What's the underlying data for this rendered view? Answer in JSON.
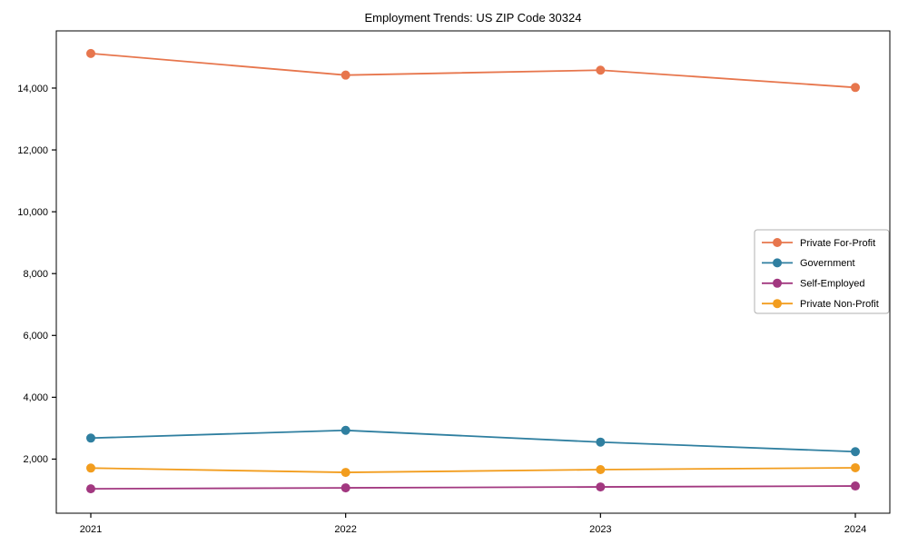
{
  "figure": {
    "background": "#ffffff",
    "frame_color": "#000000",
    "legend_border_color": "#b0b0b0"
  },
  "chart_data": {
    "type": "line",
    "title": "Employment Trends: US ZIP Code 30324",
    "categories": [
      "2021",
      "2022",
      "2023",
      "2024"
    ],
    "series": [
      {
        "name": "Private For-Profit",
        "color": "#E7764D",
        "values": [
          15120,
          14420,
          14580,
          14020
        ]
      },
      {
        "name": "Government",
        "color": "#2F7FA0",
        "values": [
          2680,
          2930,
          2550,
          2240
        ]
      },
      {
        "name": "Self-Employed",
        "color": "#A23880",
        "values": [
          1040,
          1070,
          1100,
          1130
        ]
      },
      {
        "name": "Private Non-Profit",
        "color": "#F29D1E",
        "values": [
          1710,
          1570,
          1660,
          1720
        ]
      }
    ],
    "xlabel": "",
    "ylabel": "",
    "ylim": [
      250,
      15850
    ],
    "yticks": [
      2000,
      4000,
      6000,
      8000,
      10000,
      12000,
      14000
    ],
    "grid": false,
    "legend_position": "center right",
    "legend_entries": [
      "Private For-Profit",
      "Government",
      "Self-Employed",
      "Private Non-Profit"
    ],
    "marker": "circle",
    "frame": true
  }
}
